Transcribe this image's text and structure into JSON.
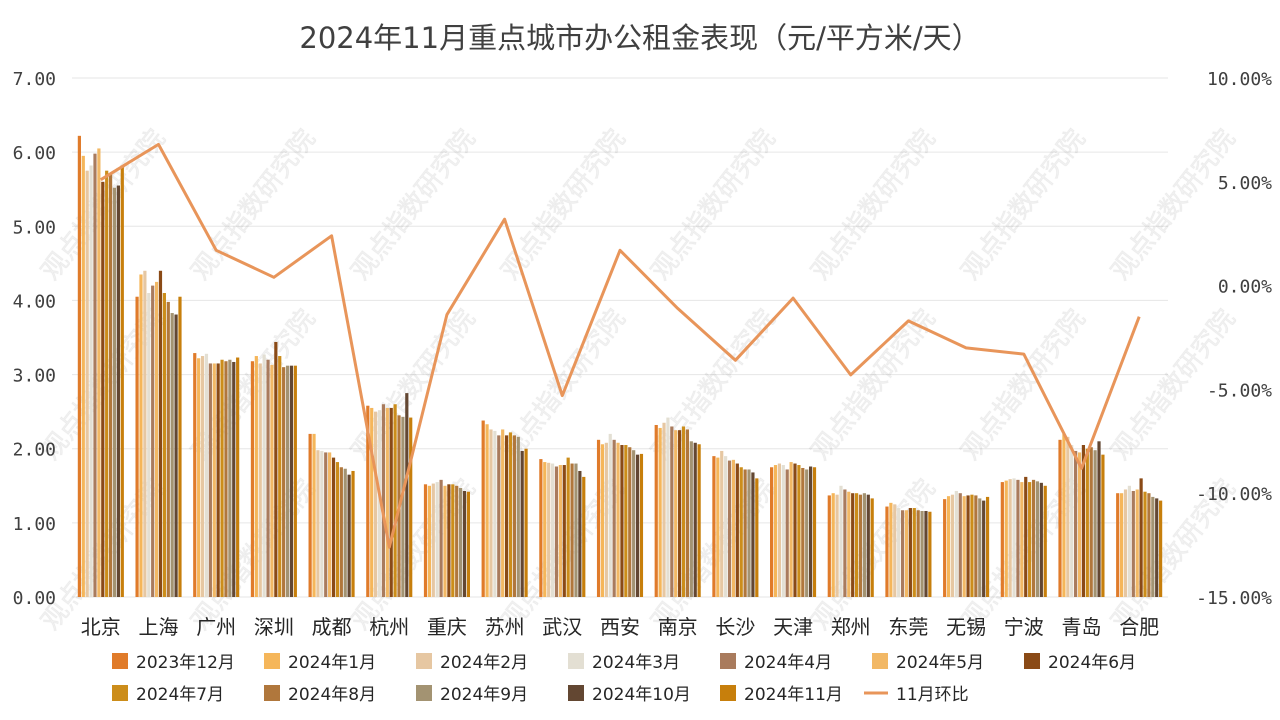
{
  "chart_data": {
    "type": "bar",
    "title": "2024年11月重点城市办公租金表现（元/平方米/天）",
    "categories": [
      "北京",
      "上海",
      "广州",
      "深圳",
      "成都",
      "杭州",
      "重庆",
      "苏州",
      "武汉",
      "西安",
      "南京",
      "长沙",
      "天津",
      "郑州",
      "东莞",
      "无锡",
      "宁波",
      "青岛",
      "合肥"
    ],
    "y_left": {
      "lim": [
        0,
        7
      ],
      "ticks": [
        "0.00",
        "1.00",
        "2.00",
        "3.00",
        "4.00",
        "5.00",
        "6.00",
        "7.00"
      ]
    },
    "y_right": {
      "lim": [
        -15,
        10
      ],
      "ticks": [
        "-15.00%",
        "-10.00%",
        "-5.00%",
        "0.00%",
        "5.00%",
        "10.00%"
      ]
    },
    "series": [
      {
        "name": "2023年12月",
        "color": "#e07b2a",
        "values": [
          6.22,
          4.05,
          3.29,
          3.18,
          2.2,
          2.58,
          1.52,
          2.38,
          1.86,
          2.12,
          2.32,
          1.9,
          1.75,
          1.37,
          1.22,
          1.32,
          1.55,
          2.12,
          1.4
        ]
      },
      {
        "name": "2024年1月",
        "color": "#f5b65a",
        "values": [
          5.95,
          4.35,
          3.22,
          3.25,
          2.2,
          2.55,
          1.5,
          2.33,
          1.82,
          2.06,
          2.28,
          1.88,
          1.78,
          1.4,
          1.27,
          1.36,
          1.57,
          2.2,
          1.4
        ]
      },
      {
        "name": "2024年2月",
        "color": "#e6c7a2",
        "values": [
          5.75,
          4.4,
          3.25,
          3.15,
          1.98,
          2.5,
          1.53,
          2.26,
          1.81,
          2.08,
          2.35,
          1.97,
          1.8,
          1.38,
          1.25,
          1.38,
          1.59,
          2.16,
          1.45
        ]
      },
      {
        "name": "2024年3月",
        "color": "#e3dfd3",
        "values": [
          5.82,
          4.1,
          3.28,
          3.27,
          1.97,
          2.52,
          1.55,
          2.24,
          1.8,
          2.2,
          2.42,
          1.9,
          1.78,
          1.5,
          1.2,
          1.43,
          1.6,
          2.05,
          1.5
        ]
      },
      {
        "name": "2024年4月",
        "color": "#a97b5d",
        "values": [
          5.98,
          4.2,
          3.15,
          3.2,
          1.95,
          2.6,
          1.58,
          2.18,
          1.76,
          2.12,
          2.3,
          1.84,
          1.72,
          1.45,
          1.17,
          1.4,
          1.58,
          1.97,
          1.43
        ]
      },
      {
        "name": "2024年5月",
        "color": "#f2b865",
        "values": [
          6.05,
          4.25,
          3.15,
          3.13,
          1.95,
          2.55,
          1.5,
          2.26,
          1.78,
          2.08,
          2.25,
          1.85,
          1.82,
          1.42,
          1.17,
          1.36,
          1.55,
          1.95,
          1.45
        ]
      },
      {
        "name": "2024年6月",
        "color": "#8a4a16",
        "values": [
          5.6,
          4.4,
          3.15,
          3.44,
          1.88,
          2.55,
          1.52,
          2.18,
          1.78,
          2.05,
          2.25,
          1.8,
          1.8,
          1.4,
          1.2,
          1.37,
          1.62,
          2.05,
          1.6
        ]
      },
      {
        "name": "2024年7月",
        "color": "#cc8d1a",
        "values": [
          5.75,
          4.1,
          3.2,
          3.25,
          1.82,
          2.6,
          1.52,
          2.22,
          1.88,
          2.05,
          2.3,
          1.75,
          1.78,
          1.4,
          1.2,
          1.38,
          1.55,
          2.0,
          1.42
        ]
      },
      {
        "name": "2024年8月",
        "color": "#b0773c",
        "values": [
          5.7,
          3.98,
          3.18,
          3.1,
          1.75,
          2.45,
          1.5,
          2.18,
          1.8,
          2.02,
          2.26,
          1.72,
          1.74,
          1.38,
          1.17,
          1.37,
          1.58,
          2.02,
          1.4
        ]
      },
      {
        "name": "2024年9月",
        "color": "#a39372",
        "values": [
          5.52,
          3.83,
          3.2,
          3.12,
          1.73,
          2.43,
          1.47,
          2.16,
          1.8,
          1.98,
          2.1,
          1.72,
          1.72,
          1.4,
          1.16,
          1.33,
          1.56,
          1.98,
          1.35
        ]
      },
      {
        "name": "2024年10月",
        "color": "#634732",
        "values": [
          5.55,
          3.81,
          3.17,
          3.12,
          1.65,
          2.75,
          1.43,
          1.97,
          1.7,
          1.92,
          2.08,
          1.68,
          1.76,
          1.38,
          1.16,
          1.3,
          1.54,
          2.1,
          1.33
        ]
      },
      {
        "name": "2024年11月",
        "color": "#c77f0c",
        "values": [
          5.82,
          4.05,
          3.23,
          3.12,
          1.7,
          2.42,
          1.42,
          2.0,
          1.62,
          1.93,
          2.06,
          1.6,
          1.75,
          1.33,
          1.15,
          1.35,
          1.5,
          1.92,
          1.3
        ]
      }
    ],
    "line_series": {
      "name": "11月环比",
      "color": "#e8955a",
      "axis": "right",
      "values": [
        5.1,
        6.8,
        1.7,
        0.4,
        2.4,
        -12.6,
        -1.4,
        3.2,
        -5.3,
        1.7,
        -1.1,
        -3.6,
        -0.6,
        -4.3,
        -1.7,
        -3.0,
        -3.3,
        -8.8,
        -1.5
      ]
    },
    "legend": {
      "position": "bottom",
      "columns": 7
    },
    "grid": true,
    "watermark": "观点指数研究院"
  }
}
